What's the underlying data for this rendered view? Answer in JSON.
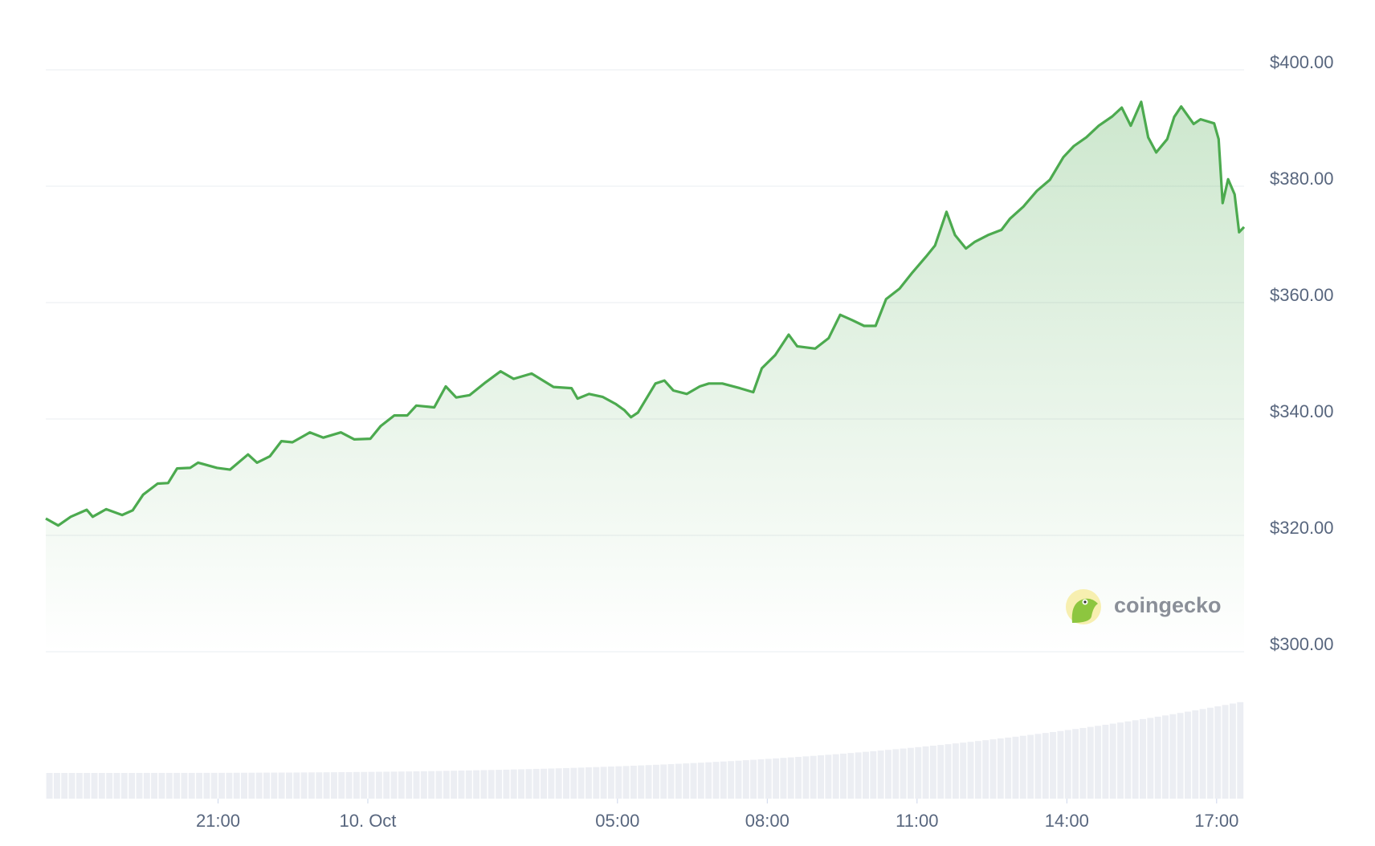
{
  "chart_data": {
    "type": "line",
    "watermark": "coingecko",
    "x": [
      17.55,
      17.8,
      18.05,
      18.37,
      18.49,
      18.76,
      19.08,
      19.29,
      19.5,
      19.79,
      20.0,
      20.18,
      20.44,
      20.6,
      20.98,
      21.24,
      21.6,
      21.78,
      22.04,
      22.27,
      22.49,
      22.84,
      23.11,
      23.46,
      23.73,
      24.05,
      24.26,
      24.53,
      24.79,
      24.97,
      25.33,
      25.56,
      25.77,
      26.04,
      26.36,
      26.66,
      26.92,
      27.28,
      27.72,
      28.08,
      28.2,
      28.43,
      28.7,
      28.96,
      29.14,
      29.27,
      29.41,
      29.76,
      29.94,
      30.12,
      30.39,
      30.65,
      30.83,
      31.1,
      31.45,
      31.72,
      31.89,
      32.16,
      32.43,
      32.6,
      32.96,
      33.23,
      33.46,
      33.7,
      33.94,
      34.17,
      34.38,
      34.65,
      34.91,
      35.18,
      35.36,
      35.59,
      35.76,
      35.98,
      36.15,
      36.42,
      36.69,
      36.86,
      37.13,
      37.4,
      37.66,
      37.93,
      38.14,
      38.39,
      38.64,
      38.91,
      39.1,
      39.28,
      39.49,
      39.63,
      39.79,
      40.01,
      40.15,
      40.29,
      40.54,
      40.68,
      40.95,
      41.04,
      41.12,
      41.23,
      41.36,
      41.45,
      41.55
    ],
    "series": [
      {
        "color": "#4caa4f",
        "values": [
          322.9,
          321.7,
          323.2,
          324.4,
          323.2,
          324.5,
          323.5,
          324.3,
          327.0,
          328.9,
          329.0,
          331.5,
          331.6,
          332.5,
          331.6,
          331.3,
          333.9,
          332.5,
          333.6,
          336.2,
          336.0,
          337.7,
          336.8,
          337.7,
          336.5,
          336.6,
          338.8,
          340.6,
          340.6,
          342.3,
          342.0,
          345.6,
          343.7,
          344.1,
          346.3,
          348.2,
          346.9,
          347.8,
          345.5,
          345.3,
          343.5,
          344.3,
          343.8,
          342.6,
          341.5,
          340.3,
          341.1,
          346.1,
          346.6,
          344.9,
          344.3,
          345.6,
          346.1,
          346.1,
          345.3,
          344.6,
          348.7,
          351.0,
          354.5,
          352.5,
          352.1,
          353.9,
          357.9,
          357.0,
          356.0,
          356.0,
          360.6,
          362.4,
          365.2,
          367.9,
          369.8,
          375.6,
          371.6,
          369.3,
          370.4,
          371.6,
          372.5,
          374.4,
          376.5,
          379.2,
          381.1,
          385.0,
          386.9,
          388.4,
          390.4,
          392.0,
          393.5,
          390.4,
          394.5,
          388.4,
          385.8,
          388.1,
          391.9,
          393.7,
          390.7,
          391.5,
          390.8,
          388.1,
          377.1,
          381.2,
          378.6,
          372.1,
          373.0
        ]
      }
    ],
    "xlim": [
      17.55,
      41.55
    ],
    "xticks": [
      {
        "value": 21,
        "label": "21:00"
      },
      {
        "value": 24,
        "label": "10. Oct"
      },
      {
        "value": 29,
        "label": "05:00"
      },
      {
        "value": 32,
        "label": "08:00"
      },
      {
        "value": 35,
        "label": "11:00"
      },
      {
        "value": 38,
        "label": "14:00"
      },
      {
        "value": 41,
        "label": "17:00"
      }
    ],
    "ylim": [
      300,
      400
    ],
    "yticks": [
      {
        "value": 300,
        "label": "$300.00"
      },
      {
        "value": 320,
        "label": "$320.00"
      },
      {
        "value": 340,
        "label": "$340.00"
      },
      {
        "value": 360,
        "label": "$360.00"
      },
      {
        "value": 380,
        "label": "$380.00"
      },
      {
        "value": 400,
        "label": "$400.00"
      }
    ],
    "grid": true
  }
}
